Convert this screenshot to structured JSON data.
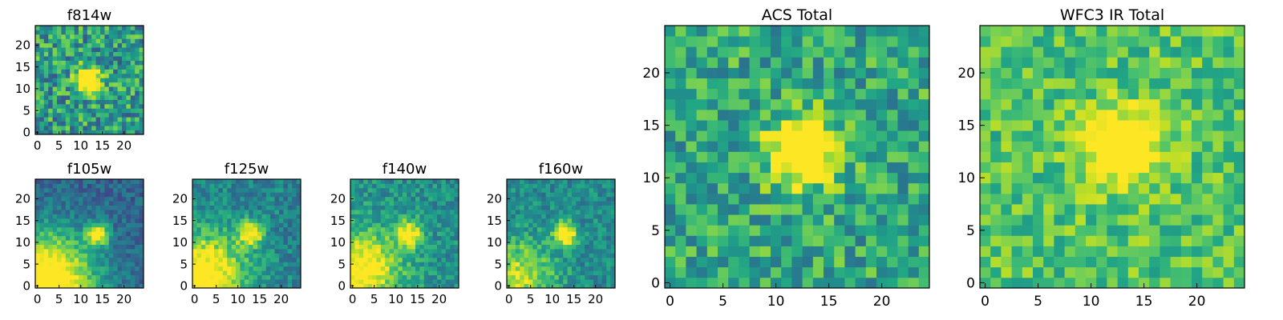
{
  "chart_data": [
    {
      "type": "heatmap",
      "title": "f814w",
      "xlim": [
        0,
        25
      ],
      "ylim": [
        0,
        25
      ],
      "xticks": [
        0,
        5,
        10,
        15,
        20
      ],
      "yticks": [
        0,
        5,
        10,
        15,
        20
      ],
      "grid_size": [
        25,
        25
      ],
      "colormap": "viridis",
      "hotspot": {
        "x": 12,
        "y": 12,
        "radius": 2.0,
        "strength": 0.9
      },
      "corner_glow": null,
      "noise": 0.55,
      "base": 0.55,
      "seed": 11
    },
    {
      "type": "heatmap",
      "title": "ACS Total",
      "xlim": [
        0,
        25
      ],
      "ylim": [
        0,
        25
      ],
      "xticks": [
        0,
        5,
        10,
        15,
        20
      ],
      "yticks": [
        0,
        5,
        10,
        15,
        20
      ],
      "grid_size": [
        25,
        25
      ],
      "colormap": "viridis",
      "hotspot": {
        "x": 12.5,
        "y": 12.5,
        "radius": 2.2,
        "strength": 0.85
      },
      "corner_glow": null,
      "noise": 0.45,
      "base": 0.6,
      "seed": 23
    },
    {
      "type": "heatmap",
      "title": "WFC3 IR Total",
      "xlim": [
        0,
        25
      ],
      "ylim": [
        0,
        25
      ],
      "xticks": [
        0,
        5,
        10,
        15,
        20
      ],
      "yticks": [
        0,
        5,
        10,
        15,
        20
      ],
      "grid_size": [
        25,
        25
      ],
      "colormap": "viridis",
      "hotspot": {
        "x": 13,
        "y": 13,
        "radius": 2.5,
        "strength": 0.6
      },
      "corner_glow": null,
      "noise": 0.35,
      "base": 0.72,
      "seed": 37
    },
    {
      "type": "heatmap",
      "title": "f105w",
      "xlim": [
        0,
        25
      ],
      "ylim": [
        0,
        25
      ],
      "xticks": [
        0,
        5,
        10,
        15,
        20
      ],
      "yticks": [
        0,
        5,
        10,
        15,
        20
      ],
      "grid_size": [
        25,
        25
      ],
      "colormap": "viridis",
      "hotspot": {
        "x": 14,
        "y": 12,
        "radius": 1.8,
        "strength": 0.7
      },
      "corner_glow": {
        "x": 2,
        "y": 1,
        "radius": 8,
        "strength": 0.9
      },
      "noise": 0.25,
      "base": 0.32,
      "seed": 41
    },
    {
      "type": "heatmap",
      "title": "f125w",
      "xlim": [
        0,
        25
      ],
      "ylim": [
        0,
        25
      ],
      "xticks": [
        0,
        5,
        10,
        15,
        20
      ],
      "yticks": [
        0,
        5,
        10,
        15,
        20
      ],
      "grid_size": [
        25,
        25
      ],
      "colormap": "viridis",
      "hotspot": {
        "x": 13,
        "y": 12,
        "radius": 2.0,
        "strength": 0.6
      },
      "corner_glow": {
        "x": 2,
        "y": 2,
        "radius": 7,
        "strength": 0.7
      },
      "noise": 0.3,
      "base": 0.45,
      "seed": 53
    },
    {
      "type": "heatmap",
      "title": "f140w",
      "xlim": [
        0,
        25
      ],
      "ylim": [
        0,
        25
      ],
      "xticks": [
        0,
        5,
        10,
        15,
        20
      ],
      "yticks": [
        0,
        5,
        10,
        15,
        20
      ],
      "grid_size": [
        25,
        25
      ],
      "colormap": "viridis",
      "hotspot": {
        "x": 13,
        "y": 12,
        "radius": 2.2,
        "strength": 0.55
      },
      "corner_glow": {
        "x": 1,
        "y": 3,
        "radius": 7,
        "strength": 0.6
      },
      "noise": 0.3,
      "base": 0.5,
      "seed": 67
    },
    {
      "type": "heatmap",
      "title": "f160w",
      "xlim": [
        0,
        25
      ],
      "ylim": [
        0,
        25
      ],
      "xticks": [
        0,
        5,
        10,
        15,
        20
      ],
      "yticks": [
        0,
        5,
        10,
        15,
        20
      ],
      "grid_size": [
        25,
        25
      ],
      "colormap": "viridis",
      "hotspot": {
        "x": 13,
        "y": 12,
        "radius": 1.8,
        "strength": 0.75
      },
      "corner_glow": {
        "x": 2,
        "y": 2,
        "radius": 6,
        "strength": 0.45
      },
      "noise": 0.3,
      "base": 0.48,
      "seed": 79
    }
  ]
}
